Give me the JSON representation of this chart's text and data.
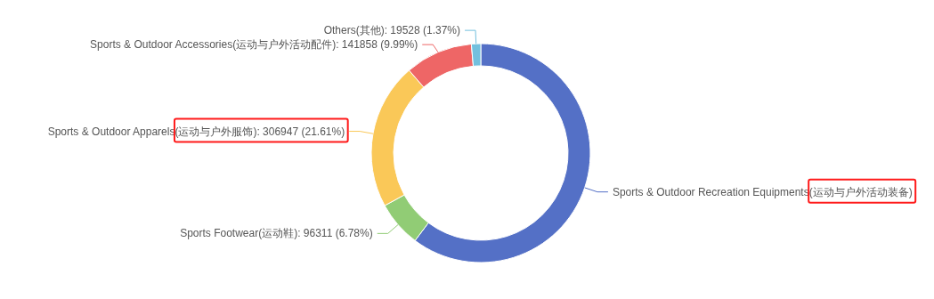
{
  "chart_data": {
    "type": "donut",
    "categories": [
      "Sports & Outdoor Recreation Equipments(运动与户外活动装备)",
      "Sports Footwear(运动鞋)",
      "Sports & Outdoor Apparels(运动与户外服饰)",
      "Sports & Outdoor Accessories(运动与户外活动配件)",
      "Others(其他)"
    ],
    "values": [
      855800,
      96311,
      306947,
      141858,
      19528
    ],
    "colors": [
      "#5470c6",
      "#91cc75",
      "#fac858",
      "#ee6666",
      "#73c0de"
    ],
    "value_labels": [
      null,
      "96311 (6.78%)",
      "306947 (21.61%)",
      "141858 (9.99%)",
      "19528 (1.37%)"
    ]
  }
}
